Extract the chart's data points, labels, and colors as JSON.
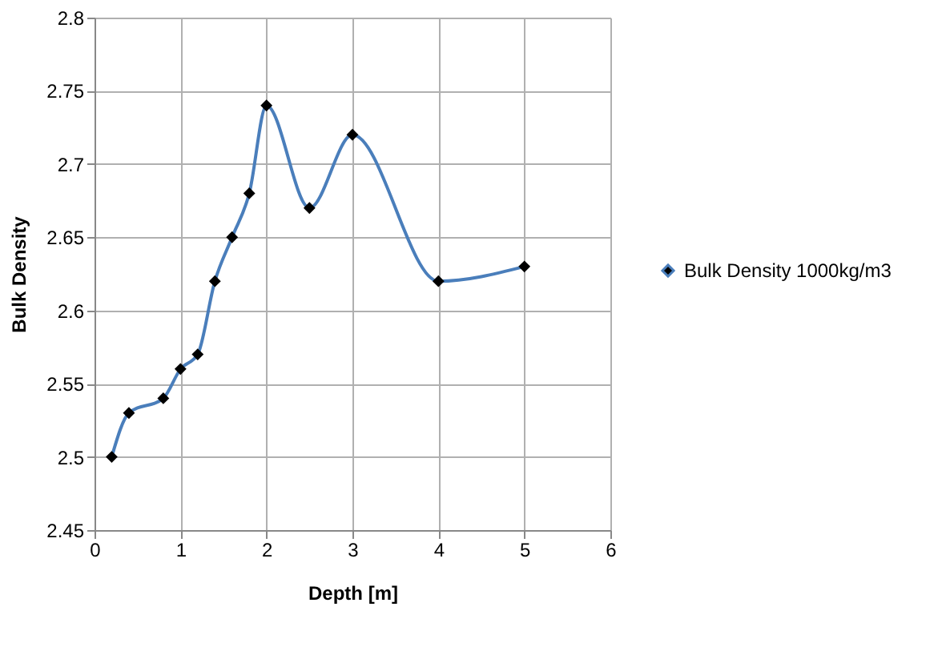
{
  "chart_data": {
    "type": "line",
    "xlabel": "Depth [m]",
    "ylabel": "Bulk Density",
    "x": [
      0.2,
      0.4,
      0.8,
      1.0,
      1.2,
      1.4,
      1.6,
      1.8,
      2.0,
      2.5,
      3.0,
      4.0,
      5.0
    ],
    "series": [
      {
        "name": "Bulk Density 1000kg/m3",
        "color": "#4a7ebb",
        "values": [
          2.5,
          2.53,
          2.54,
          2.56,
          2.57,
          2.62,
          2.65,
          2.68,
          2.74,
          2.67,
          2.72,
          2.62,
          2.63
        ]
      }
    ],
    "xlim": [
      0,
      6
    ],
    "xticks": [
      0,
      1,
      2,
      3,
      4,
      5,
      6
    ],
    "ylim": [
      2.45,
      2.8
    ],
    "yticks": [
      2.45,
      2.5,
      2.55,
      2.6,
      2.65,
      2.7,
      2.75,
      2.8
    ],
    "grid": true,
    "legend": "right",
    "marker": "diamond",
    "line_style": "solid"
  }
}
